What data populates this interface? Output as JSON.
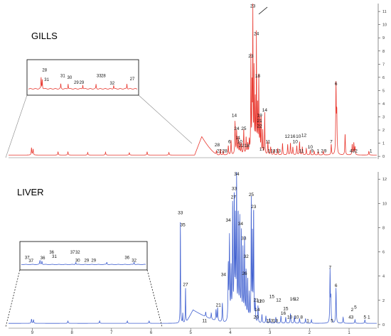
{
  "chart_data": [
    {
      "type": "line",
      "title": "GILLS",
      "color": "#e8382f",
      "xlim": [
        9.6,
        0.3
      ],
      "ylim": [
        -0.1,
        11.6
      ],
      "yticks": [
        0,
        1,
        2,
        3,
        4,
        5,
        6,
        7,
        8,
        9,
        10,
        11
      ],
      "xticks": [],
      "baseline": 0.1,
      "peaks": [
        {
          "x": 9.02,
          "h": 0.55,
          "w": 0.008
        },
        {
          "x": 8.98,
          "h": 0.45,
          "w": 0.008
        },
        {
          "x": 8.35,
          "h": 0.25,
          "w": 0.008
        },
        {
          "x": 8.1,
          "h": 0.25,
          "w": 0.008
        },
        {
          "x": 7.6,
          "h": 0.2,
          "w": 0.008
        },
        {
          "x": 7.15,
          "h": 0.22,
          "w": 0.008
        },
        {
          "x": 6.55,
          "h": 0.18,
          "w": 0.008
        },
        {
          "x": 6.1,
          "h": 0.25,
          "w": 0.008
        },
        {
          "x": 5.55,
          "h": 0.2,
          "w": 0.008
        },
        {
          "x": 4.35,
          "h": 0.3,
          "w": 0.006
        },
        {
          "x": 4.25,
          "h": 0.45,
          "w": 0.006
        },
        {
          "x": 4.18,
          "h": 0.35,
          "w": 0.006
        },
        {
          "x": 4.05,
          "h": 0.7,
          "w": 0.008
        },
        {
          "x": 3.98,
          "h": 1.1,
          "w": 0.008
        },
        {
          "x": 3.88,
          "h": 2.5,
          "w": 0.008
        },
        {
          "x": 3.84,
          "h": 1.8,
          "w": 0.008
        },
        {
          "x": 3.8,
          "h": 1.3,
          "w": 0.008
        },
        {
          "x": 3.76,
          "h": 0.9,
          "w": 0.008
        },
        {
          "x": 3.72,
          "h": 0.8,
          "w": 0.008
        },
        {
          "x": 3.66,
          "h": 1.9,
          "w": 0.008
        },
        {
          "x": 3.6,
          "h": 1.3,
          "w": 0.008
        },
        {
          "x": 3.56,
          "h": 0.8,
          "w": 0.008
        },
        {
          "x": 3.52,
          "h": 1.0,
          "w": 0.008
        },
        {
          "x": 3.48,
          "h": 7.3,
          "w": 0.006
        },
        {
          "x": 3.45,
          "h": 5.0,
          "w": 0.006
        },
        {
          "x": 3.43,
          "h": 11.8,
          "w": 0.005
        },
        {
          "x": 3.4,
          "h": 6.5,
          "w": 0.006
        },
        {
          "x": 3.37,
          "h": 4.0,
          "w": 0.006
        },
        {
          "x": 3.34,
          "h": 9.0,
          "w": 0.005
        },
        {
          "x": 3.31,
          "h": 3.8,
          "w": 0.006
        },
        {
          "x": 3.28,
          "h": 5.8,
          "w": 0.006
        },
        {
          "x": 3.25,
          "h": 2.6,
          "w": 0.006
        },
        {
          "x": 3.22,
          "h": 2.8,
          "w": 0.006
        },
        {
          "x": 3.18,
          "h": 1.8,
          "w": 0.006
        },
        {
          "x": 3.13,
          "h": 3.2,
          "w": 0.006
        },
        {
          "x": 3.05,
          "h": 1.0,
          "w": 0.008
        },
        {
          "x": 2.98,
          "h": 0.6,
          "w": 0.008
        },
        {
          "x": 2.9,
          "h": 0.4,
          "w": 0.008
        },
        {
          "x": 2.8,
          "h": 0.5,
          "w": 0.008
        },
        {
          "x": 2.68,
          "h": 0.9,
          "w": 0.008
        },
        {
          "x": 2.55,
          "h": 0.8,
          "w": 0.008
        },
        {
          "x": 2.48,
          "h": 0.9,
          "w": 0.008
        },
        {
          "x": 2.42,
          "h": 0.6,
          "w": 0.008
        },
        {
          "x": 2.32,
          "h": 0.7,
          "w": 0.008
        },
        {
          "x": 2.25,
          "h": 1.0,
          "w": 0.008
        },
        {
          "x": 2.18,
          "h": 0.6,
          "w": 0.008
        },
        {
          "x": 2.08,
          "h": 0.5,
          "w": 0.008
        },
        {
          "x": 1.98,
          "h": 0.35,
          "w": 0.008
        },
        {
          "x": 1.88,
          "h": 0.3,
          "w": 0.008
        },
        {
          "x": 1.78,
          "h": 0.25,
          "w": 0.008
        },
        {
          "x": 1.65,
          "h": 0.3,
          "w": 0.008
        },
        {
          "x": 1.45,
          "h": 0.8,
          "w": 0.008
        },
        {
          "x": 1.33,
          "h": 5.2,
          "w": 0.008
        },
        {
          "x": 1.31,
          "h": 3.0,
          "w": 0.008
        },
        {
          "x": 1.1,
          "h": 1.6,
          "w": 0.008
        },
        {
          "x": 0.92,
          "h": 0.8,
          "w": 0.008
        },
        {
          "x": 0.88,
          "h": 0.9,
          "w": 0.008
        },
        {
          "x": 0.85,
          "h": 0.6,
          "w": 0.008
        },
        {
          "x": 0.5,
          "h": 0.3,
          "w": 0.008
        }
      ],
      "hump": {
        "x0": 4.9,
        "x1": 4.3,
        "peak": 4.72,
        "h": 1.4
      },
      "labels": [
        {
          "t": "23",
          "x": 3.43,
          "y": 11.3
        },
        {
          "t": "24",
          "x": 3.34,
          "y": 9.2
        },
        {
          "t": "23",
          "x": 3.48,
          "y": 7.5
        },
        {
          "t": "18",
          "x": 3.31,
          "y": 6.0
        },
        {
          "t": "6",
          "x": 1.33,
          "y": 5.4
        },
        {
          "t": "14",
          "x": 3.13,
          "y": 3.4
        },
        {
          "t": "14",
          "x": 3.9,
          "y": 3.0
        },
        {
          "t": "19",
          "x": 3.26,
          "y": 3.0
        },
        {
          "t": "21",
          "x": 3.26,
          "y": 2.6
        },
        {
          "t": "22",
          "x": 3.26,
          "y": 2.2
        },
        {
          "t": "24",
          "x": 3.84,
          "y": 2.0
        },
        {
          "t": "25",
          "x": 3.66,
          "y": 2.0
        },
        {
          "t": "12",
          "x": 2.14,
          "y": 1.5
        },
        {
          "t": "12",
          "x": 2.56,
          "y": 1.4
        },
        {
          "t": "16",
          "x": 2.42,
          "y": 1.4
        },
        {
          "t": "10",
          "x": 2.28,
          "y": 1.4
        },
        {
          "t": "11",
          "x": 3.8,
          "y": 1.3
        },
        {
          "t": "6",
          "x": 4.02,
          "y": 1.0
        },
        {
          "t": "10",
          "x": 3.76,
          "y": 1.0
        },
        {
          "t": "11",
          "x": 3.05,
          "y": 1.0
        },
        {
          "t": "10",
          "x": 2.36,
          "y": 1.0
        },
        {
          "t": "7",
          "x": 1.45,
          "y": 1.0
        },
        {
          "t": "22",
          "x": 3.72,
          "y": 0.7
        },
        {
          "t": "18",
          "x": 3.58,
          "y": 0.7
        },
        {
          "t": "28",
          "x": 4.33,
          "y": 0.75
        },
        {
          "t": "17",
          "x": 3.2,
          "y": 0.45
        },
        {
          "t": "10",
          "x": 1.98,
          "y": 0.6
        },
        {
          "t": "22",
          "x": 4.28,
          "y": 0.3
        },
        {
          "t": "28",
          "x": 4.14,
          "y": 0.3
        },
        {
          "t": "1",
          "x": 3.02,
          "y": 0.3
        },
        {
          "t": "13",
          "x": 2.92,
          "y": 0.3
        },
        {
          "t": "13",
          "x": 2.79,
          "y": 0.3
        },
        {
          "t": "11",
          "x": 2.2,
          "y": 0.3
        },
        {
          "t": "9",
          "x": 1.93,
          "y": 0.3
        },
        {
          "t": "1",
          "x": 1.78,
          "y": 0.3
        },
        {
          "t": "2",
          "x": 1.68,
          "y": 0.3
        },
        {
          "t": "9",
          "x": 1.6,
          "y": 0.3
        },
        {
          "t": "43",
          "x": 0.92,
          "y": 0.3
        },
        {
          "t": "2",
          "x": 0.82,
          "y": 0.3
        },
        {
          "t": "1",
          "x": 0.45,
          "y": 0.3
        }
      ],
      "inset_labels": [
        {
          "t": "28",
          "x": 8.9,
          "y": 5.6
        },
        {
          "t": "31",
          "x": 8.83,
          "y": 2.8
        },
        {
          "t": "31",
          "x": 8.28,
          "y": 4.0
        },
        {
          "t": "30",
          "x": 8.05,
          "y": 3.5
        },
        {
          "t": "29",
          "x": 7.82,
          "y": 2.0
        },
        {
          "t": "29",
          "x": 7.64,
          "y": 2.0
        },
        {
          "t": "33",
          "x": 7.05,
          "y": 4.0
        },
        {
          "t": "28",
          "x": 6.9,
          "y": 4.0
        },
        {
          "t": "32",
          "x": 6.6,
          "y": 1.8
        },
        {
          "t": "27",
          "x": 5.92,
          "y": 3.0
        }
      ]
    },
    {
      "type": "line",
      "title": "LIVER",
      "color": "#4060d0",
      "xlim": [
        9.6,
        0.3
      ],
      "ylim": [
        -0.3,
        12.6
      ],
      "yticks": [
        0,
        2,
        4,
        6,
        8,
        10,
        12
      ],
      "xticks": [
        9,
        8,
        7,
        6,
        5,
        4,
        3,
        2,
        1
      ],
      "baseline": 0.1,
      "peaks": [
        {
          "x": 9.02,
          "h": 0.35,
          "w": 0.008
        },
        {
          "x": 8.97,
          "h": 0.3,
          "w": 0.008
        },
        {
          "x": 8.1,
          "h": 0.2,
          "w": 0.008
        },
        {
          "x": 7.3,
          "h": 0.2,
          "w": 0.008
        },
        {
          "x": 6.6,
          "h": 0.2,
          "w": 0.008
        },
        {
          "x": 6.05,
          "h": 0.2,
          "w": 0.008
        },
        {
          "x": 5.26,
          "h": 8.8,
          "w": 0.005
        },
        {
          "x": 5.2,
          "h": 0.8,
          "w": 0.006
        },
        {
          "x": 5.13,
          "h": 3.0,
          "w": 0.006
        },
        {
          "x": 4.62,
          "h": 0.4,
          "w": 0.008
        },
        {
          "x": 4.48,
          "h": 0.5,
          "w": 0.008
        },
        {
          "x": 4.36,
          "h": 0.9,
          "w": 0.008
        },
        {
          "x": 4.32,
          "h": 1.1,
          "w": 0.008
        },
        {
          "x": 4.2,
          "h": 1.6,
          "w": 0.008
        },
        {
          "x": 4.05,
          "h": 4.6,
          "w": 0.008
        },
        {
          "x": 4.02,
          "h": 6.8,
          "w": 0.008
        },
        {
          "x": 3.98,
          "h": 4.2,
          "w": 0.008
        },
        {
          "x": 3.94,
          "h": 9.7,
          "w": 0.007
        },
        {
          "x": 3.9,
          "h": 10.3,
          "w": 0.007
        },
        {
          "x": 3.87,
          "h": 8.0,
          "w": 0.007
        },
        {
          "x": 3.84,
          "h": 12.0,
          "w": 0.006
        },
        {
          "x": 3.8,
          "h": 9.0,
          "w": 0.007
        },
        {
          "x": 3.76,
          "h": 8.5,
          "w": 0.007
        },
        {
          "x": 3.72,
          "h": 7.2,
          "w": 0.007
        },
        {
          "x": 3.68,
          "h": 5.8,
          "w": 0.007
        },
        {
          "x": 3.64,
          "h": 6.8,
          "w": 0.007
        },
        {
          "x": 3.6,
          "h": 4.2,
          "w": 0.007
        },
        {
          "x": 3.56,
          "h": 3.5,
          "w": 0.007
        },
        {
          "x": 3.52,
          "h": 2.3,
          "w": 0.007
        },
        {
          "x": 3.47,
          "h": 10.2,
          "w": 0.006
        },
        {
          "x": 3.44,
          "h": 7.0,
          "w": 0.006
        },
        {
          "x": 3.41,
          "h": 9.6,
          "w": 0.006
        },
        {
          "x": 3.37,
          "h": 1.8,
          "w": 0.007
        },
        {
          "x": 3.3,
          "h": 1.4,
          "w": 0.007
        },
        {
          "x": 3.2,
          "h": 0.7,
          "w": 0.008
        },
        {
          "x": 3.1,
          "h": 0.6,
          "w": 0.008
        },
        {
          "x": 3.0,
          "h": 0.4,
          "w": 0.008
        },
        {
          "x": 2.85,
          "h": 0.5,
          "w": 0.008
        },
        {
          "x": 2.72,
          "h": 0.6,
          "w": 0.008
        },
        {
          "x": 2.6,
          "h": 0.5,
          "w": 0.008
        },
        {
          "x": 2.48,
          "h": 0.8,
          "w": 0.008
        },
        {
          "x": 2.38,
          "h": 0.6,
          "w": 0.008
        },
        {
          "x": 2.25,
          "h": 0.4,
          "w": 0.008
        },
        {
          "x": 2.1,
          "h": 0.4,
          "w": 0.008
        },
        {
          "x": 1.95,
          "h": 0.3,
          "w": 0.008
        },
        {
          "x": 1.48,
          "h": 4.3,
          "w": 0.007
        },
        {
          "x": 1.46,
          "h": 2.0,
          "w": 0.008
        },
        {
          "x": 1.33,
          "h": 2.9,
          "w": 0.008
        },
        {
          "x": 1.15,
          "h": 0.5,
          "w": 0.008
        },
        {
          "x": 0.85,
          "h": 0.3,
          "w": 0.008
        },
        {
          "x": 0.6,
          "h": 0.3,
          "w": 0.008
        }
      ],
      "hump": {
        "x0": 5.12,
        "x1": 4.1,
        "peak": 4.94,
        "h": 1.1
      },
      "labels": [
        {
          "t": "34",
          "x": 3.84,
          "y": 12.3
        },
        {
          "t": "33",
          "x": 3.9,
          "y": 11.1
        },
        {
          "t": "27",
          "x": 3.92,
          "y": 10.4
        },
        {
          "t": "25",
          "x": 3.47,
          "y": 10.6
        },
        {
          "t": "23",
          "x": 3.41,
          "y": 9.6
        },
        {
          "t": "33",
          "x": 5.26,
          "y": 9.1
        },
        {
          "t": "35",
          "x": 5.2,
          "y": 8.1
        },
        {
          "t": "34",
          "x": 4.05,
          "y": 8.5
        },
        {
          "t": "34",
          "x": 3.74,
          "y": 8.2
        },
        {
          "t": "33",
          "x": 3.66,
          "y": 7.0
        },
        {
          "t": "32",
          "x": 3.6,
          "y": 5.5
        },
        {
          "t": "7",
          "x": 1.48,
          "y": 4.6
        },
        {
          "t": "34",
          "x": 4.17,
          "y": 4.0
        },
        {
          "t": "26",
          "x": 3.64,
          "y": 4.1
        },
        {
          "t": "27",
          "x": 5.13,
          "y": 3.2
        },
        {
          "t": "6",
          "x": 1.33,
          "y": 3.1
        },
        {
          "t": "21",
          "x": 3.35,
          "y": 1.9
        },
        {
          "t": "16",
          "x": 2.43,
          "y": 2.0
        },
        {
          "t": "12",
          "x": 2.33,
          "y": 2.0
        },
        {
          "t": "15",
          "x": 2.95,
          "y": 2.2
        },
        {
          "t": "12",
          "x": 2.78,
          "y": 1.9
        },
        {
          "t": "11",
          "x": 3.27,
          "y": 1.8
        },
        {
          "t": "20",
          "x": 3.2,
          "y": 1.8
        },
        {
          "t": "14",
          "x": 3.32,
          "y": 1.1
        },
        {
          "t": "15",
          "x": 2.6,
          "y": 1.2
        },
        {
          "t": "16",
          "x": 2.66,
          "y": 0.8
        },
        {
          "t": "21",
          "x": 4.3,
          "y": 1.5
        },
        {
          "t": "11",
          "x": 4.65,
          "y": 0.2
        },
        {
          "t": "20",
          "x": 3.35,
          "y": 0.5
        },
        {
          "t": "1",
          "x": 3.06,
          "y": 0.2
        },
        {
          "t": "13",
          "x": 2.98,
          "y": 0.2
        },
        {
          "t": "13",
          "x": 2.86,
          "y": 0.2
        },
        {
          "t": "10",
          "x": 2.5,
          "y": 0.5
        },
        {
          "t": "10",
          "x": 2.33,
          "y": 0.5
        },
        {
          "t": "8",
          "x": 2.2,
          "y": 0.5
        },
        {
          "t": "1",
          "x": 2.04,
          "y": 0.2
        },
        {
          "t": "5",
          "x": 1.43,
          "y": 0.2
        },
        {
          "t": "2",
          "x": 0.92,
          "y": 1.1
        },
        {
          "t": "5",
          "x": 0.84,
          "y": 1.3
        },
        {
          "t": "4",
          "x": 0.98,
          "y": 0.5
        },
        {
          "t": "3",
          "x": 0.92,
          "y": 0.5
        },
        {
          "t": "5",
          "x": 0.6,
          "y": 0.5
        },
        {
          "t": "1",
          "x": 0.5,
          "y": 0.5
        }
      ],
      "inset_labels": [
        {
          "t": "37",
          "x": 9.35,
          "y": 3.4
        },
        {
          "t": "37",
          "x": 9.25,
          "y": 1.8
        },
        {
          "t": "36",
          "x": 8.95,
          "y": 3.2
        },
        {
          "t": "36",
          "x": 8.72,
          "y": 6.2
        },
        {
          "t": "31",
          "x": 8.65,
          "y": 4.0
        },
        {
          "t": "37",
          "x": 8.18,
          "y": 6.2
        },
        {
          "t": "32",
          "x": 8.05,
          "y": 6.2
        },
        {
          "t": "30",
          "x": 8.05,
          "y": 2.0
        },
        {
          "t": "29",
          "x": 7.82,
          "y": 2.0
        },
        {
          "t": "29",
          "x": 7.64,
          "y": 2.0
        },
        {
          "t": "36",
          "x": 6.78,
          "y": 3.4
        },
        {
          "t": "32",
          "x": 6.6,
          "y": 2.0
        }
      ]
    }
  ]
}
